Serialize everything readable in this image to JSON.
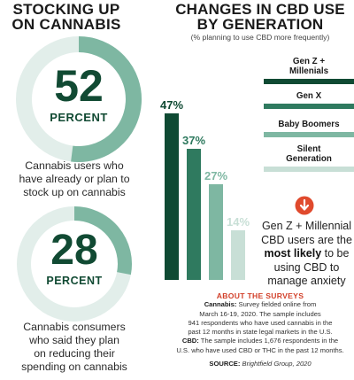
{
  "left": {
    "title_line1": "STOCKING UP",
    "title_line2": "ON CANNABIS",
    "stat1": {
      "number": "52",
      "unit": "PERCENT",
      "value": 52,
      "caption": [
        "Cannabis users who",
        "have already or plan to",
        "stock up on cannabis"
      ]
    },
    "stat2": {
      "number": "28",
      "unit": "PERCENT",
      "value": 28,
      "caption": [
        "Cannabis consumers",
        "who said they plan",
        "on reducing their",
        "spending on cannabis"
      ]
    }
  },
  "right": {
    "title_line1": "CHANGES IN CBD USE",
    "title_line2": "BY GENERATION",
    "subtitle": "(% planning to use CBD more frequently)",
    "note": {
      "pre": "Gen Z + Millennial CBD users are the ",
      "bold": "most likely",
      "post": " to be using CBD to manage anxiety"
    }
  },
  "chart_data": {
    "type": "bar",
    "title": "CHANGES IN CBD USE BY GENERATION",
    "subtitle": "(% planning to use CBD more frequently)",
    "categories": [
      "Gen Z + Millenials",
      "Gen X",
      "Baby Boomers",
      "Silent Generation"
    ],
    "values": [
      47,
      37,
      27,
      14
    ],
    "labels": [
      "47%",
      "37%",
      "27%",
      "14%"
    ],
    "colors": [
      "#0f4a33",
      "#2f7a5f",
      "#7eb7a2",
      "#c8dfd6"
    ],
    "legend": [
      {
        "name_line1": "Gen Z +",
        "name_line2": "Millenials"
      },
      {
        "name_line1": "Gen X",
        "name_line2": ""
      },
      {
        "name_line1": "Baby Boomers",
        "name_line2": ""
      },
      {
        "name_line1": "Silent",
        "name_line2": "Generation"
      }
    ],
    "legend_position": "right",
    "grid": false
  },
  "about": {
    "heading": "ABOUT THE SURVEYS",
    "cannabis_label": "Cannabis:",
    "cannabis_lines": [
      " Survey fielded online from",
      "March 16-19, 2020. The sample includes",
      "941 respondents who have used cannabis in the",
      "past 12 months in state legal markets in the U.S."
    ],
    "cbd_label": "CBD:",
    "cbd_lines": [
      " The sample includes 1,676 respondents in the",
      "U.S. who have used CBD or THC in the past 12 months."
    ],
    "source_label": "SOURCE:",
    "source_value": " Brightfield Group, 2020"
  },
  "colors": {
    "dark_green": "#0f4a33",
    "teal": "#7eb7a2",
    "accent_red": "#e04a2d"
  }
}
